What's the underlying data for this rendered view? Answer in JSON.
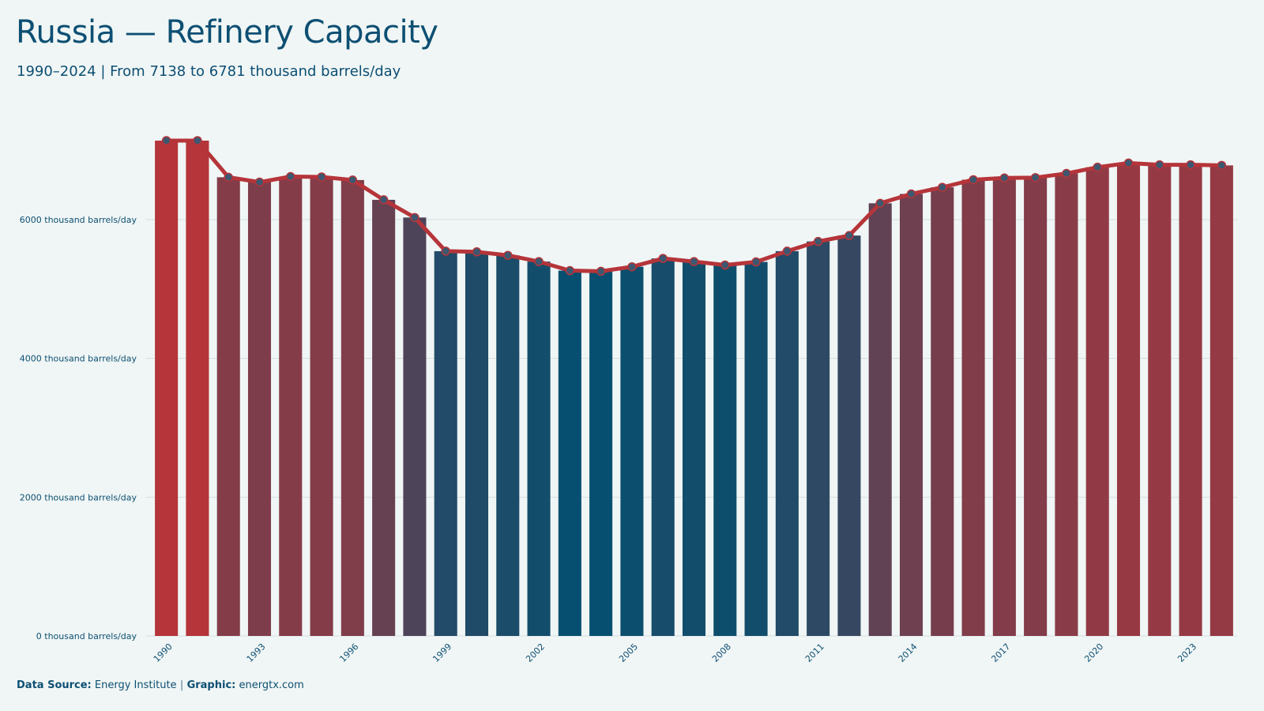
{
  "header": {
    "title": "Russia — Refinery Capacity",
    "subtitle": "1990–2024 | From 7138 to 6781 thousand barrels/day"
  },
  "footer": {
    "source_label": "Data Source:",
    "source_value": "Energy Institute",
    "separator": "|",
    "graphic_label": "Graphic:",
    "graphic_value": "energtx.com"
  },
  "colors": {
    "high": "#b5353a",
    "low": "#064f70",
    "line": "#b5353a",
    "marker_fill": "#3d5870",
    "grid": "#d5dee2",
    "text": "#0d4f73",
    "background": "#f0f6f5"
  },
  "chart_data": {
    "type": "bar",
    "title": "Russia — Refinery Capacity",
    "xlabel": "",
    "ylabel": "",
    "ylim": [
      0,
      7138
    ],
    "grid": "horizontal",
    "overlay": "line with markers",
    "y_ticks": [
      0,
      2000,
      4000,
      6000
    ],
    "y_tick_suffix": " thousand barrels/day",
    "x_tick_labels": [
      "1990",
      "1993",
      "1996",
      "1999",
      "2002",
      "2005",
      "2008",
      "2011",
      "2014",
      "2017",
      "2020",
      "2023"
    ],
    "categories": [
      "1990",
      "1991",
      "1992",
      "1993",
      "1994",
      "1995",
      "1996",
      "1997",
      "1998",
      "1999",
      "2000",
      "2001",
      "2002",
      "2003",
      "2004",
      "2005",
      "2006",
      "2007",
      "2008",
      "2009",
      "2010",
      "2011",
      "2012",
      "2013",
      "2014",
      "2015",
      "2016",
      "2017",
      "2018",
      "2019",
      "2020",
      "2021",
      "2022",
      "2023",
      "2024"
    ],
    "values": [
      7138,
      7138,
      6610,
      6540,
      6620,
      6615,
      6570,
      6285,
      6030,
      5545,
      5535,
      5485,
      5395,
      5265,
      5255,
      5320,
      5440,
      5395,
      5345,
      5390,
      5545,
      5685,
      5770,
      6235,
      6370,
      6465,
      6575,
      6600,
      6605,
      6665,
      6755,
      6815,
      6790,
      6790,
      6781
    ]
  }
}
